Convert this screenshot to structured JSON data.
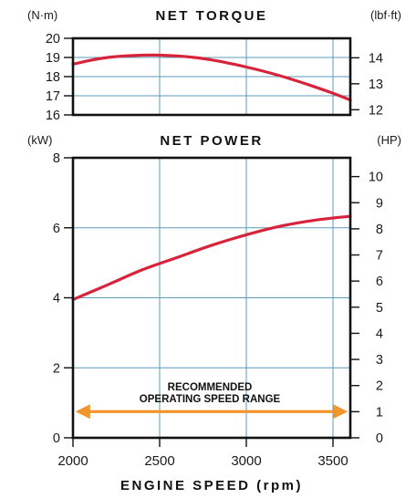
{
  "colors": {
    "curve": "#d8243a",
    "grid": "#5b9ab8",
    "range_arrow": "#f2952c",
    "frame": "#111111"
  },
  "chart_data": [
    {
      "type": "line",
      "title": "NET TORQUE",
      "left_unit": "(N·m)",
      "right_unit": "(lbf·ft)",
      "xlim": [
        2000,
        3600
      ],
      "ylim": [
        16,
        20
      ],
      "right_ylim_lbf_ft": [
        11.8,
        14.75
      ],
      "xticks": [
        2000,
        2500,
        3000,
        3500
      ],
      "yticks": [
        16,
        17,
        18,
        19,
        20
      ],
      "right_yticks": [
        12,
        13,
        14
      ],
      "grid": true,
      "x": [
        2000,
        2100,
        2200,
        2300,
        2400,
        2500,
        2600,
        2700,
        2800,
        2900,
        3000,
        3100,
        3200,
        3300,
        3400,
        3500,
        3600
      ],
      "values": [
        18.65,
        18.85,
        19.0,
        19.08,
        19.12,
        19.12,
        19.08,
        19.0,
        18.87,
        18.7,
        18.5,
        18.28,
        18.03,
        17.75,
        17.45,
        17.13,
        16.78
      ]
    },
    {
      "type": "line",
      "title": "NET POWER",
      "left_unit": "(kW)",
      "right_unit": "(HP)",
      "xlim": [
        2000,
        3600
      ],
      "ylim": [
        0,
        8
      ],
      "right_ylim_hp": [
        0,
        10.72
      ],
      "xticks": [
        2000,
        2500,
        3000,
        3500
      ],
      "xtick_labels": [
        "2000",
        "2500",
        "3000",
        "3500"
      ],
      "yticks": [
        0,
        2,
        4,
        6,
        8
      ],
      "right_yticks": [
        0,
        1,
        2,
        3,
        4,
        5,
        6,
        7,
        8,
        9,
        10
      ],
      "grid": true,
      "xlabel": "ENGINE SPEED (rpm)",
      "x": [
        2000,
        2200,
        2400,
        2600,
        2800,
        3000,
        3200,
        3400,
        3600
      ],
      "values": [
        3.95,
        4.37,
        4.8,
        5.15,
        5.5,
        5.8,
        6.05,
        6.22,
        6.33
      ],
      "annotation": {
        "lines": [
          "RECOMMENDED",
          "OPERATING SPEED RANGE"
        ],
        "range_x": [
          2000,
          3600
        ],
        "range_y_kw": 0.75
      }
    }
  ]
}
